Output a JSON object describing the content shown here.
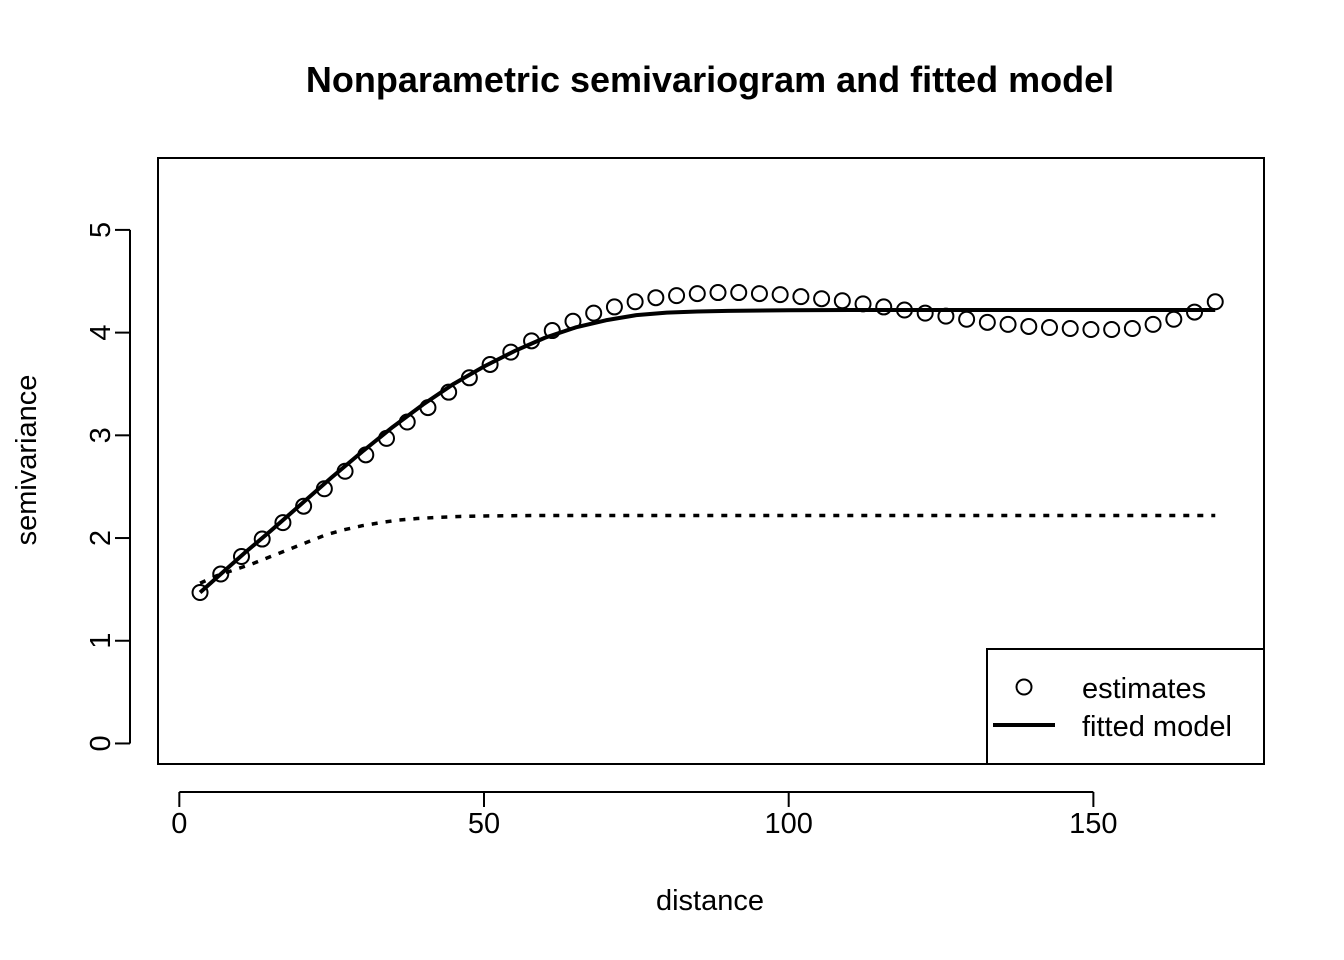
{
  "chart_data": {
    "type": "scatter",
    "title": "Nonparametric semivariogram and fitted model",
    "xlabel": "distance",
    "ylabel": "semivariance",
    "xlim": [
      -3.5,
      178
    ],
    "ylim": [
      -0.2,
      5.7
    ],
    "xticks": [
      "0",
      "50",
      "100",
      "150"
    ],
    "xtick_values": [
      0,
      50,
      100,
      150
    ],
    "yticks": [
      "0",
      "1",
      "2",
      "3",
      "4",
      "5"
    ],
    "ytick_values": [
      0,
      1,
      2,
      3,
      4,
      5
    ],
    "grid": false,
    "legend_position": "bottom-right",
    "series": [
      {
        "name": "estimates",
        "kind": "points",
        "marker": "open-circle",
        "color": "#000000",
        "x": [
          3.4,
          6.8,
          10.2,
          13.6,
          17.0,
          20.4,
          23.8,
          27.2,
          30.6,
          34.0,
          37.4,
          40.8,
          44.2,
          47.6,
          51.0,
          54.4,
          57.8,
          61.2,
          64.6,
          68.0,
          71.4,
          74.8,
          78.2,
          81.6,
          85.0,
          88.4,
          91.8,
          95.2,
          98.6,
          102.0,
          105.4,
          108.8,
          112.2,
          115.6,
          119.0,
          122.4,
          125.8,
          129.2,
          132.6,
          136.0,
          139.4,
          142.8,
          146.2,
          149.6,
          153.0,
          156.4,
          159.8,
          163.2,
          166.6,
          170.0
        ],
        "y": [
          1.47,
          1.65,
          1.82,
          1.99,
          2.15,
          2.31,
          2.48,
          2.65,
          2.81,
          2.97,
          3.13,
          3.27,
          3.42,
          3.56,
          3.69,
          3.81,
          3.92,
          4.02,
          4.11,
          4.19,
          4.25,
          4.3,
          4.34,
          4.36,
          4.38,
          4.39,
          4.39,
          4.38,
          4.37,
          4.35,
          4.33,
          4.31,
          4.28,
          4.25,
          4.22,
          4.19,
          4.16,
          4.13,
          4.1,
          4.08,
          4.06,
          4.05,
          4.04,
          4.03,
          4.03,
          4.04,
          4.08,
          4.13,
          4.2,
          4.3
        ]
      },
      {
        "name": "fitted model",
        "kind": "line",
        "style": "solid",
        "color": "#000000",
        "x": [
          3.4,
          7,
          11,
          15,
          20,
          25,
          30,
          35,
          40,
          45,
          50,
          55,
          60,
          65,
          70,
          75,
          80,
          85,
          90,
          100,
          110,
          130,
          150,
          170
        ],
        "y": [
          1.47,
          1.66,
          1.87,
          2.07,
          2.33,
          2.59,
          2.84,
          3.08,
          3.3,
          3.5,
          3.67,
          3.82,
          3.95,
          4.05,
          4.12,
          4.17,
          4.195,
          4.205,
          4.212,
          4.218,
          4.22,
          4.22,
          4.22,
          4.22
        ]
      },
      {
        "kind": "line",
        "style": "dotted",
        "color": "#000000",
        "x": [
          3.4,
          6,
          9,
          12,
          15,
          18,
          21,
          24,
          27,
          30,
          33,
          36,
          39,
          42,
          46,
          50,
          60,
          80,
          100,
          130,
          170
        ],
        "y": [
          1.56,
          1.63,
          1.69,
          1.75,
          1.82,
          1.89,
          1.96,
          2.03,
          2.08,
          2.12,
          2.15,
          2.175,
          2.19,
          2.2,
          2.21,
          2.215,
          2.22,
          2.22,
          2.22,
          2.22,
          2.22
        ]
      }
    ]
  }
}
